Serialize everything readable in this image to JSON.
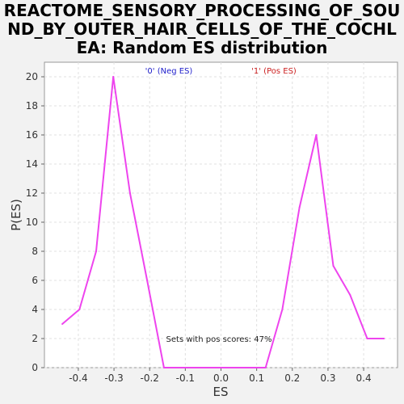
{
  "title_lines": [
    "REACTOME_SENSORY_PROCESSING_OF_SOU",
    "ND_BY_OUTER_HAIR_CELLS_OF_THE_COCHL",
    "EA: Random ES distribution"
  ],
  "chart_data": {
    "type": "line",
    "title": "REACTOME_SENSORY_PROCESSING_OF_SOUND_BY_OUTER_HAIR_CELLS_OF_THE_COCHLEA: Random ES distribution",
    "xlabel": "ES",
    "ylabel": "P(ES)",
    "xlim": [
      -0.495,
      0.495
    ],
    "ylim": [
      0,
      21
    ],
    "x_ticks": [
      -0.4,
      -0.3,
      -0.2,
      -0.1,
      0.0,
      0.1,
      0.2,
      0.3,
      0.4
    ],
    "x_tick_labels": [
      "-0.4",
      "-0.3",
      "-0.2",
      "-0.1",
      "0.0",
      "0.1",
      "0.2",
      "0.3",
      "0.4"
    ],
    "y_ticks": [
      0,
      2,
      4,
      6,
      8,
      10,
      12,
      14,
      16,
      18,
      20
    ],
    "y_tick_labels": [
      "0",
      "2",
      "4",
      "6",
      "8",
      "10",
      "12",
      "14",
      "16",
      "18",
      "20"
    ],
    "grid": true,
    "legend": [
      {
        "label": "'0' (Neg ES)",
        "color": "#2222cc"
      },
      {
        "label": "'1' (Pos ES)",
        "color": "#cc2222"
      }
    ],
    "legend_placement": "top",
    "annotation": "Sets with pos scores: 47%",
    "series": [
      {
        "color": "#ee44ee",
        "x": [
          -0.445,
          -0.397,
          -0.35,
          -0.302,
          -0.255,
          -0.207,
          -0.16,
          -0.112,
          -0.065,
          -0.017,
          0.03,
          0.078,
          0.125,
          0.172,
          0.22,
          0.267,
          0.315,
          0.362,
          0.41,
          0.457
        ],
        "y": [
          3,
          4,
          8,
          20,
          12,
          6,
          0,
          0,
          0,
          0,
          0,
          0,
          0,
          4,
          11,
          16,
          7,
          5,
          2,
          2
        ]
      }
    ]
  }
}
